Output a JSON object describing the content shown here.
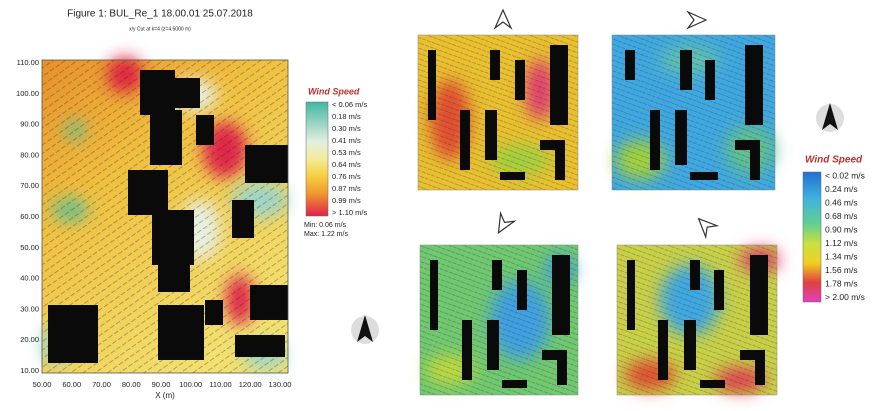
{
  "left_figure": {
    "title": "Figure 1: BUL_Re_1 18.00.01 25.07.2018",
    "subtitle": "x/y Cut at k=4 (z=4.5000 m)",
    "x_label": "X (m)",
    "x_ticks": [
      "50.00",
      "60.00",
      "70.00",
      "80.00",
      "90.00",
      "100.00",
      "110.00",
      "120.00",
      "130.00"
    ],
    "y_ticks": [
      "110.00",
      "100.00",
      "90.00",
      "80.00",
      "70.00",
      "60.00",
      "50.00",
      "40.00",
      "30.00",
      "20.00",
      "10.00"
    ],
    "legend": {
      "title": "Wind Speed",
      "labels": [
        "< 0.06 m/s",
        "0.18 m/s",
        "0.30 m/s",
        "0.41 m/s",
        "0.53 m/s",
        "0.64 m/s",
        "0.76 m/s",
        "0.87 m/s",
        "0.99 m/s",
        "> 1.10 m/s"
      ],
      "min": "Min: 0.06 m/s",
      "max": "Max: 1.22 m/s"
    }
  },
  "right_legend": {
    "title": "Wind Speed",
    "labels": [
      "< 0.02 m/s",
      "0.24 m/s",
      "0.46 m/s",
      "0.68 m/s",
      "0.90 m/s",
      "1.12 m/s",
      "1.34 m/s",
      "1.56 m/s",
      "1.78 m/s",
      "> 2.00 m/s"
    ]
  }
}
